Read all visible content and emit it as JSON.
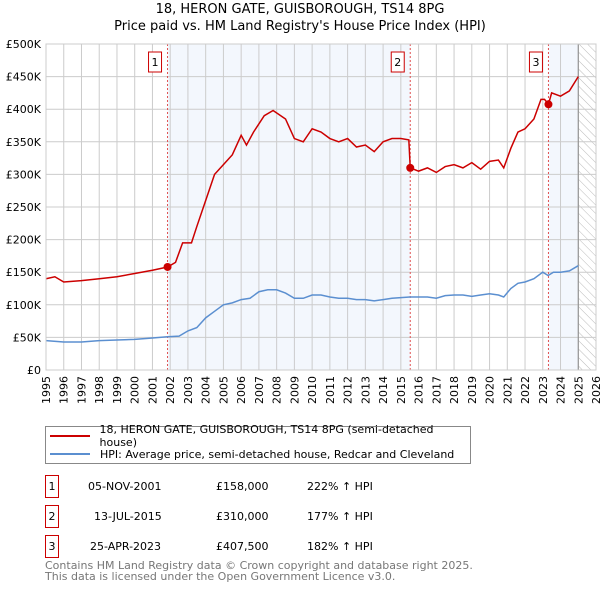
{
  "title": "18, HERON GATE, GUISBOROUGH, TS14 8PG",
  "subtitle": "Price paid vs. HM Land Registry's House Price Index (HPI)",
  "chart_data": {
    "type": "line",
    "title": "18, HERON GATE, GUISBOROUGH, TS14 8PG — Price paid vs. HM Land Registry's House Price Index (HPI)",
    "xlim": [
      1995,
      2026
    ],
    "ylim": [
      0,
      500000
    ],
    "x_ticks": [
      "1995",
      "1996",
      "1997",
      "1998",
      "1999",
      "2000",
      "2001",
      "2002",
      "2003",
      "2004",
      "2005",
      "2006",
      "2007",
      "2008",
      "2009",
      "2010",
      "2011",
      "2012",
      "2013",
      "2014",
      "2015",
      "2016",
      "2017",
      "2018",
      "2019",
      "2020",
      "2021",
      "2022",
      "2023",
      "2024",
      "2025",
      "2026"
    ],
    "y_ticks": [
      {
        "v": 0,
        "label": "£0"
      },
      {
        "v": 50000,
        "label": "£50K"
      },
      {
        "v": 100000,
        "label": "£100K"
      },
      {
        "v": 150000,
        "label": "£150K"
      },
      {
        "v": 200000,
        "label": "£200K"
      },
      {
        "v": 250000,
        "label": "£250K"
      },
      {
        "v": 300000,
        "label": "£300K"
      },
      {
        "v": 350000,
        "label": "£350K"
      },
      {
        "v": 400000,
        "label": "£400K"
      },
      {
        "v": 450000,
        "label": "£450K"
      },
      {
        "v": 500000,
        "label": "£500K"
      }
    ],
    "grid": true,
    "data_end": 2025.0,
    "series": [
      {
        "name": "18, HERON GATE, GUISBOROUGH, TS14 8PG (semi-detached house)",
        "color": "#cc0000",
        "x": [
          1995,
          1995.5,
          1996,
          1997,
          1998,
          1999,
          2000,
          2001,
          2001.85,
          2002.3,
          2002.7,
          2003.2,
          2003.5,
          2004,
          2004.5,
          2005,
          2005.5,
          2006,
          2006.3,
          2006.7,
          2007.3,
          2007.8,
          2008.5,
          2009,
          2009.5,
          2010,
          2010.5,
          2011,
          2011.5,
          2012,
          2012.5,
          2013,
          2013.5,
          2014,
          2014.5,
          2015,
          2015.45,
          2015.53,
          2016,
          2016.5,
          2017,
          2017.5,
          2018,
          2018.5,
          2019,
          2019.5,
          2020,
          2020.5,
          2020.8,
          2021.2,
          2021.6,
          2022,
          2022.5,
          2022.9,
          2023.1,
          2023.32,
          2023.5,
          2024,
          2024.5,
          2025
        ],
        "y": [
          140000,
          143000,
          135000,
          137000,
          140000,
          143000,
          148000,
          153000,
          158000,
          165000,
          195000,
          195000,
          220000,
          260000,
          300000,
          315000,
          330000,
          360000,
          345000,
          365000,
          390000,
          398000,
          385000,
          355000,
          350000,
          370000,
          365000,
          355000,
          350000,
          355000,
          342000,
          345000,
          335000,
          350000,
          355000,
          355000,
          353000,
          310000,
          305000,
          310000,
          303000,
          312000,
          315000,
          310000,
          318000,
          308000,
          320000,
          322000,
          310000,
          340000,
          365000,
          370000,
          385000,
          415000,
          415000,
          407500,
          425000,
          420000,
          428000,
          450000
        ]
      },
      {
        "name": "HPI: Average price, semi-detached house, Redcar and Cleveland",
        "color": "#5b8fd0",
        "x": [
          1995,
          1996,
          1997,
          1998,
          1999,
          2000,
          2001,
          2001.85,
          2002.5,
          2003,
          2003.5,
          2004,
          2004.5,
          2005,
          2005.5,
          2006,
          2006.5,
          2007,
          2007.5,
          2008,
          2008.5,
          2009,
          2009.5,
          2010,
          2010.5,
          2011,
          2011.5,
          2012,
          2012.5,
          2013,
          2013.5,
          2014,
          2014.5,
          2015,
          2015.5,
          2016,
          2016.5,
          2017,
          2017.5,
          2018,
          2018.5,
          2019,
          2019.5,
          2020,
          2020.5,
          2020.8,
          2021.2,
          2021.6,
          2022,
          2022.5,
          2023,
          2023.3,
          2023.6,
          2024,
          2024.5,
          2025
        ],
        "y": [
          45000,
          43000,
          43000,
          45000,
          46000,
          47000,
          49000,
          51000,
          52000,
          60000,
          65000,
          80000,
          90000,
          100000,
          103000,
          108000,
          110000,
          120000,
          123000,
          123000,
          118000,
          110000,
          110000,
          115000,
          115000,
          112000,
          110000,
          110000,
          108000,
          108000,
          106000,
          108000,
          110000,
          111000,
          112000,
          112000,
          112000,
          110000,
          114000,
          115000,
          115000,
          113000,
          115000,
          117000,
          115000,
          112000,
          125000,
          133000,
          135000,
          140000,
          150000,
          145000,
          150000,
          150000,
          152000,
          160000
        ]
      }
    ],
    "sales": [
      {
        "n": "1",
        "x": 2001.85,
        "y": 158000,
        "date": "05-NOV-2001",
        "price": "£158,000",
        "hpi": "222% ↑ HPI"
      },
      {
        "n": "2",
        "x": 2015.53,
        "y": 310000,
        "date": "13-JUL-2015",
        "price": "£310,000",
        "hpi": "177% ↑ HPI"
      },
      {
        "n": "3",
        "x": 2023.32,
        "y": 407500,
        "date": "25-APR-2023",
        "price": "£407,500",
        "hpi": "182% ↑ HPI"
      }
    ]
  },
  "legend": {
    "property": "18, HERON GATE, GUISBOROUGH, TS14 8PG (semi-detached house)",
    "hpi": "HPI: Average price, semi-detached house, Redcar and Cleveland"
  },
  "footer": {
    "line1": "Contains HM Land Registry data © Crown copyright and database right 2025.",
    "line2": "This data is licensed under the Open Government Licence v3.0."
  }
}
